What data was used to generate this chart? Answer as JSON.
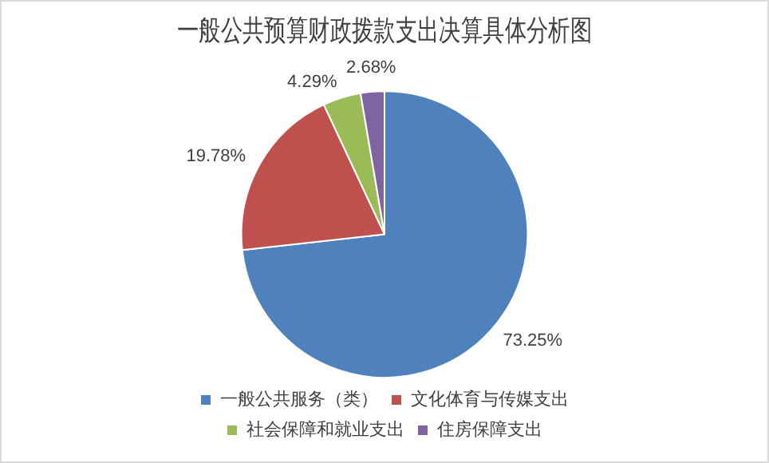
{
  "chart_data": {
    "type": "pie",
    "title": "一般公共预算财政拨款支出决算具体分析图",
    "categories": [
      "一般公共服务（类）",
      "文化体育与传媒支出",
      "社会保障和就业支出",
      "住房保障支出"
    ],
    "values": [
      73.25,
      19.78,
      4.29,
      2.68
    ],
    "colors": [
      "#4f81bd",
      "#c0504d",
      "#9bbb59",
      "#8064a2"
    ],
    "value_labels": [
      "73.25%",
      "19.78%",
      "4.29%",
      "2.68%"
    ],
    "legend": "bottom"
  }
}
